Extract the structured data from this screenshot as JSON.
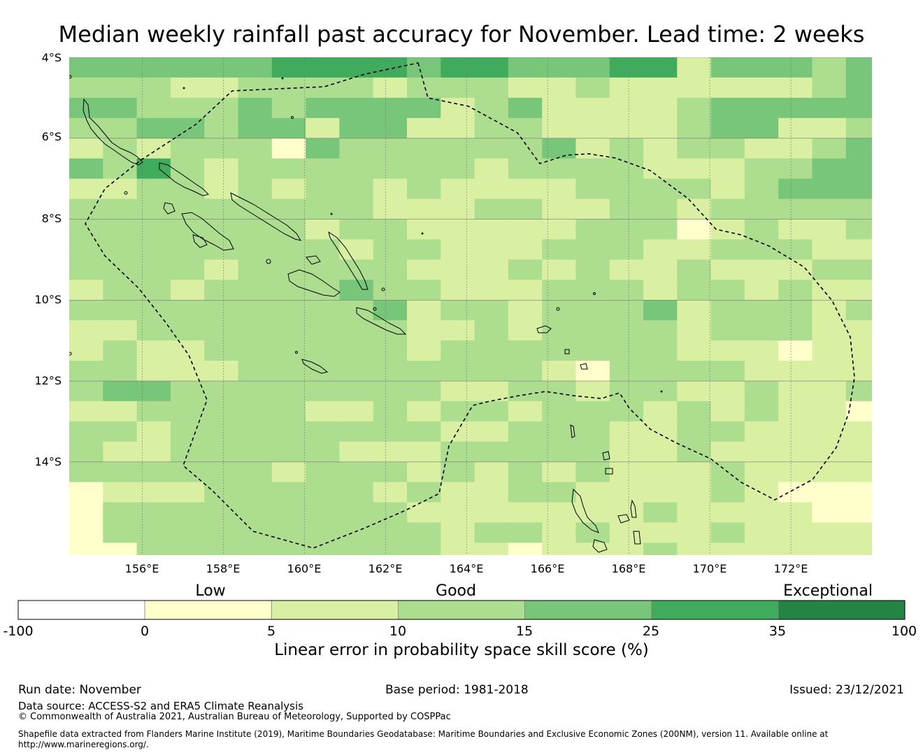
{
  "title": "Median weekly rainfall past accuracy for November. Lead time: 2 weeks",
  "map": {
    "lat_labels": [
      "4°S",
      "6°S",
      "8°S",
      "10°S",
      "12°S",
      "14°S"
    ],
    "lon_labels": [
      "156°E",
      "158°E",
      "160°E",
      "162°E",
      "164°E",
      "166°E",
      "168°E",
      "170°E",
      "172°E"
    ],
    "lon_range": [
      154.2,
      174.0
    ],
    "lat_range": [
      -4.0,
      -16.3
    ],
    "grid_origin": {
      "lon": 154.2,
      "lat": -4.0
    },
    "grid_step_deg": 0.833,
    "category_colors": [
      "#ffffff",
      "#ffffcc",
      "#d9f0a3",
      "#addd8e",
      "#78c679",
      "#41ab5d",
      "#238443"
    ],
    "skill_grid": [
      "4444445555455444552444344",
      "3332233332333223222222345",
      "4433343444423422223444444",
      "3344344244223322223442233",
      "2323331433333342323322344",
      "4353233333332333322233444",
      "2233232332322223333234444",
      "3333333332223322332333333",
      "3333333233222223331232233",
      "3333333323322233322333222",
      "3333233333222323223222331",
      "2332333343322233323323221",
      "3333333334233233342333232",
      "2233333333223233332333221",
      "2322333333233333332221222",
      "3322233333333321333322223",
      "3443333333322332332232232",
      "2233333223233233323232212",
      "3323333333322333223322222",
      "3223333322233333223222221",
      "3333332333232323222322221",
      "1222333332322332222321111",
      "1333333333222222232222111",
      "1333333333323323222322221",
      "1133333333322122232222221"
    ]
  },
  "colorbar": {
    "categories": [
      {
        "label": "Low",
        "position": "left"
      },
      {
        "label": "Good",
        "position": "center"
      },
      {
        "label": "Exceptional",
        "position": "right"
      }
    ],
    "bins": [
      -100,
      0,
      5,
      10,
      15,
      25,
      35,
      100
    ],
    "tick_labels": [
      "-100",
      "0",
      "5",
      "10",
      "15",
      "25",
      "35",
      "100"
    ],
    "title": "Linear error in probability space skill score (%)"
  },
  "footer": {
    "run_date": "Run date: November",
    "base_period": "Base period: 1981-2018",
    "issued": "Issued: 23/12/2021",
    "data_source": "Data source: ACCESS-S2 and ERA5 Climate Reanalysis",
    "copyright": "© Commonwealth of Australia 2021, Australian Bureau of Meteorology, Supported by COSPPac",
    "shapefile_line1": "Shapefile data extracted from Flanders Marine Institute (2019), Maritime Boundaries Geodatabase: Maritime Boundaries and Exclusive Economic Zones (200NM), version 11. Available online at",
    "shapefile_line2": "http://www.marineregions.org/."
  }
}
